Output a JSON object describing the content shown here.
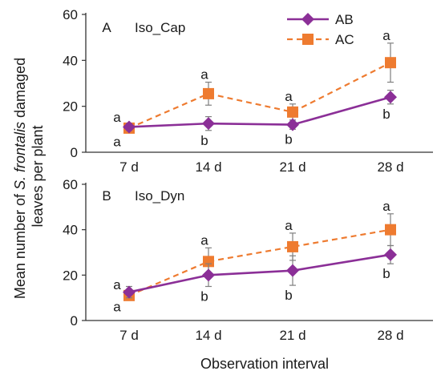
{
  "chart_data": {
    "type": "line",
    "xlabel": "Observation interval",
    "ylabel_prefix": "Mean number of ",
    "ylabel_species": "S. frontalis",
    "ylabel_suffix": " damaged",
    "ylabel_line2": "leaves per plant",
    "categories": [
      "7 d",
      "14 d",
      "21 d",
      "28 d"
    ],
    "ylim": [
      0,
      60
    ],
    "yticks": [
      0,
      20,
      40,
      60
    ],
    "legend": {
      "placement": "top-right",
      "entries": [
        {
          "key": "AB",
          "label": "AB"
        },
        {
          "key": "AC",
          "label": "AC"
        }
      ]
    },
    "colors": {
      "AB": "#8b2f97",
      "AC": "#ee7b30",
      "error_bar": "#7f7f7f",
      "axis": "#333333"
    },
    "panels": [
      {
        "letter": "A",
        "name": "Iso_Cap",
        "series": [
          {
            "key": "AB",
            "marker": "diamond",
            "line": "solid",
            "values": [
              11,
              12.5,
              12,
              24
            ],
            "errors": [
              1.5,
              3,
              2,
              3
            ],
            "labels": [
              "a",
              "b",
              "b",
              "b"
            ]
          },
          {
            "key": "AC",
            "marker": "square",
            "line": "dashed",
            "values": [
              10.5,
              25.5,
              17.5,
              39
            ],
            "errors": [
              1.5,
              5,
              3.5,
              8.5
            ],
            "labels": [
              "a",
              "a",
              "a",
              "a"
            ]
          }
        ]
      },
      {
        "letter": "B",
        "name": "Iso_Dyn",
        "series": [
          {
            "key": "AB",
            "marker": "diamond",
            "line": "solid",
            "values": [
              12.5,
              20,
              22,
              29
            ],
            "errors": [
              2.5,
              5,
              6.5,
              4
            ],
            "labels": [
              "a",
              "b",
              "b",
              "b"
            ]
          },
          {
            "key": "AC",
            "marker": "square",
            "line": "dashed",
            "values": [
              11,
              26,
              32.5,
              40
            ],
            "errors": [
              1.5,
              6,
              6,
              7
            ],
            "labels": [
              "a",
              "a",
              "a",
              "a"
            ]
          }
        ]
      }
    ]
  }
}
